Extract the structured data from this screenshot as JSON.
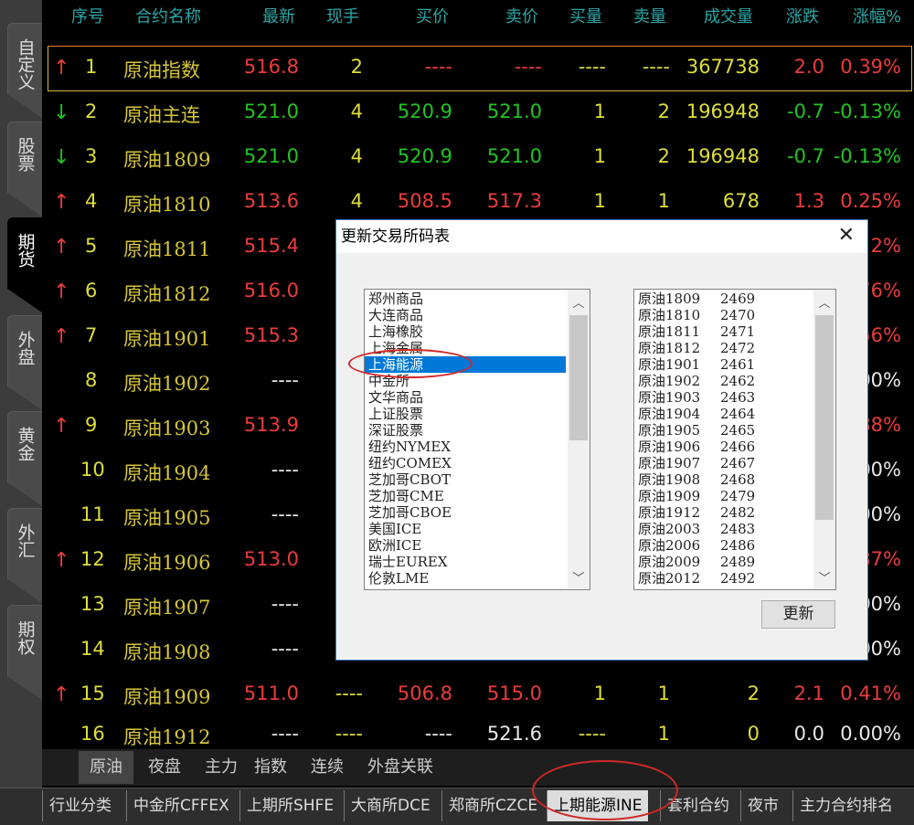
{
  "sidebar": {
    "tabs": [
      "自定义",
      "股票",
      "期货",
      "外盘",
      "黄金",
      "外汇",
      "期权"
    ],
    "active": "期货"
  },
  "table": {
    "headers": [
      "序号",
      "合约名称",
      "最新",
      "现手",
      "买价",
      "卖价",
      "买量",
      "卖量",
      "成交量",
      "涨跌",
      "涨幅%"
    ],
    "colors": {
      "r": "#ec3c3c",
      "g": "#22c422",
      "y": "#dede3a",
      "w": "#e8e8e8"
    },
    "rows": [
      {
        "dir": "up",
        "cells": [
          [
            "1",
            "y"
          ],
          [
            "原油指数",
            "n"
          ],
          [
            "516.8",
            "r"
          ],
          [
            "2",
            "y"
          ],
          [
            "----",
            "r"
          ],
          [
            "----",
            "r"
          ],
          [
            "----",
            "y"
          ],
          [
            "----",
            "y"
          ],
          [
            "367738",
            "y"
          ],
          [
            "2.0",
            "r"
          ],
          [
            "0.39%",
            "r"
          ]
        ]
      },
      {
        "dir": "down",
        "cells": [
          [
            "2",
            "y"
          ],
          [
            "原油主连",
            "n"
          ],
          [
            "521.0",
            "g"
          ],
          [
            "4",
            "y"
          ],
          [
            "520.9",
            "g"
          ],
          [
            "521.0",
            "g"
          ],
          [
            "1",
            "y"
          ],
          [
            "2",
            "y"
          ],
          [
            "196948",
            "y"
          ],
          [
            "-0.7",
            "g"
          ],
          [
            "-0.13%",
            "g"
          ]
        ]
      },
      {
        "dir": "down",
        "cells": [
          [
            "3",
            "y"
          ],
          [
            "原油1809",
            "n"
          ],
          [
            "521.0",
            "g"
          ],
          [
            "4",
            "y"
          ],
          [
            "520.9",
            "g"
          ],
          [
            "521.0",
            "g"
          ],
          [
            "1",
            "y"
          ],
          [
            "2",
            "y"
          ],
          [
            "196948",
            "y"
          ],
          [
            "-0.7",
            "g"
          ],
          [
            "-0.13%",
            "g"
          ]
        ]
      },
      {
        "dir": "up",
        "cells": [
          [
            "4",
            "y"
          ],
          [
            "原油1810",
            "n"
          ],
          [
            "513.6",
            "r"
          ],
          [
            "4",
            "y"
          ],
          [
            "508.5",
            "r"
          ],
          [
            "517.3",
            "r"
          ],
          [
            "1",
            "y"
          ],
          [
            "1",
            "y"
          ],
          [
            "678",
            "y"
          ],
          [
            "1.3",
            "r"
          ],
          [
            "0.25%",
            "r"
          ]
        ]
      },
      {
        "dir": "up",
        "cells": [
          [
            "5",
            "y"
          ],
          [
            "原油1811",
            "n"
          ],
          [
            "515.4",
            "r"
          ],
          [
            "",
            "y"
          ],
          [
            "",
            "y"
          ],
          [
            "",
            "y"
          ],
          [
            "",
            "y"
          ],
          [
            "",
            "y"
          ],
          [
            "",
            "y"
          ],
          [
            "",
            "y"
          ],
          [
            "2%",
            "r"
          ]
        ]
      },
      {
        "dir": "up",
        "cells": [
          [
            "6",
            "y"
          ],
          [
            "原油1812",
            "n"
          ],
          [
            "516.0",
            "r"
          ],
          [
            "",
            "y"
          ],
          [
            "",
            "y"
          ],
          [
            "",
            "y"
          ],
          [
            "",
            "y"
          ],
          [
            "",
            "y"
          ],
          [
            "",
            "y"
          ],
          [
            "",
            "y"
          ],
          [
            "76%",
            "r"
          ]
        ]
      },
      {
        "dir": "up",
        "cells": [
          [
            "7",
            "y"
          ],
          [
            "原油1901",
            "n"
          ],
          [
            "515.3",
            "r"
          ],
          [
            "",
            "y"
          ],
          [
            "",
            "y"
          ],
          [
            "",
            "y"
          ],
          [
            "",
            "y"
          ],
          [
            "",
            "y"
          ],
          [
            "",
            "y"
          ],
          [
            "",
            "y"
          ],
          [
            "56%",
            "r"
          ]
        ]
      },
      {
        "dir": "",
        "cells": [
          [
            "8",
            "y"
          ],
          [
            "原油1902",
            "n"
          ],
          [
            "----",
            "w"
          ],
          [
            "",
            "y"
          ],
          [
            "",
            "y"
          ],
          [
            "",
            "y"
          ],
          [
            "",
            "y"
          ],
          [
            "",
            "y"
          ],
          [
            "",
            "y"
          ],
          [
            "",
            "y"
          ],
          [
            "00%",
            "w"
          ]
        ]
      },
      {
        "dir": "up",
        "cells": [
          [
            "9",
            "y"
          ],
          [
            "原油1903",
            "n"
          ],
          [
            "513.9",
            "r"
          ],
          [
            "",
            "y"
          ],
          [
            "",
            "y"
          ],
          [
            "",
            "y"
          ],
          [
            "",
            "y"
          ],
          [
            "",
            "y"
          ],
          [
            "",
            "y"
          ],
          [
            "",
            "y"
          ],
          [
            "88%",
            "r"
          ]
        ]
      },
      {
        "dir": "",
        "cells": [
          [
            "10",
            "y"
          ],
          [
            "原油1904",
            "n"
          ],
          [
            "----",
            "w"
          ],
          [
            "",
            "y"
          ],
          [
            "",
            "y"
          ],
          [
            "",
            "y"
          ],
          [
            "",
            "y"
          ],
          [
            "",
            "y"
          ],
          [
            "",
            "y"
          ],
          [
            "",
            "y"
          ],
          [
            "00%",
            "w"
          ]
        ]
      },
      {
        "dir": "",
        "cells": [
          [
            "11",
            "y"
          ],
          [
            "原油1905",
            "n"
          ],
          [
            "----",
            "w"
          ],
          [
            "",
            "y"
          ],
          [
            "",
            "y"
          ],
          [
            "",
            "y"
          ],
          [
            "",
            "y"
          ],
          [
            "",
            "y"
          ],
          [
            "",
            "y"
          ],
          [
            "",
            "y"
          ],
          [
            "00%",
            "w"
          ]
        ]
      },
      {
        "dir": "up",
        "cells": [
          [
            "12",
            "y"
          ],
          [
            "原油1906",
            "n"
          ],
          [
            "513.0",
            "r"
          ],
          [
            "",
            "y"
          ],
          [
            "",
            "y"
          ],
          [
            "",
            "y"
          ],
          [
            "",
            "y"
          ],
          [
            "",
            "y"
          ],
          [
            "",
            "y"
          ],
          [
            "",
            "y"
          ],
          [
            "87%",
            "r"
          ]
        ]
      },
      {
        "dir": "",
        "cells": [
          [
            "13",
            "y"
          ],
          [
            "原油1907",
            "n"
          ],
          [
            "----",
            "w"
          ],
          [
            "",
            "y"
          ],
          [
            "",
            "y"
          ],
          [
            "",
            "y"
          ],
          [
            "",
            "y"
          ],
          [
            "",
            "y"
          ],
          [
            "",
            "y"
          ],
          [
            "",
            "y"
          ],
          [
            "00%",
            "w"
          ]
        ]
      },
      {
        "dir": "",
        "cells": [
          [
            "14",
            "y"
          ],
          [
            "原油1908",
            "n"
          ],
          [
            "----",
            "w"
          ],
          [
            "",
            "y"
          ],
          [
            "",
            "y"
          ],
          [
            "",
            "y"
          ],
          [
            "",
            "y"
          ],
          [
            "",
            "y"
          ],
          [
            "",
            "y"
          ],
          [
            "",
            "y"
          ],
          [
            "00%",
            "w"
          ]
        ]
      },
      {
        "dir": "up",
        "cells": [
          [
            "15",
            "y"
          ],
          [
            "原油1909",
            "n"
          ],
          [
            "511.0",
            "r"
          ],
          [
            "----",
            "y"
          ],
          [
            "506.8",
            "r"
          ],
          [
            "515.0",
            "r"
          ],
          [
            "1",
            "y"
          ],
          [
            "1",
            "y"
          ],
          [
            "2",
            "y"
          ],
          [
            "2.1",
            "r"
          ],
          [
            "0.41%",
            "r"
          ]
        ]
      },
      {
        "dir": "",
        "cells": [
          [
            "16",
            "y"
          ],
          [
            "原油1912",
            "n"
          ],
          [
            "----",
            "w"
          ],
          [
            "----",
            "y"
          ],
          [
            "----",
            "w"
          ],
          [
            "521.6",
            "w"
          ],
          [
            "----",
            "y"
          ],
          [
            "1",
            "y"
          ],
          [
            "0",
            "y"
          ],
          [
            "0.0",
            "w"
          ],
          [
            "0.00%",
            "w"
          ]
        ]
      }
    ]
  },
  "subtabs": {
    "items": [
      "原油",
      "夜盘",
      "主力",
      "指数",
      "连续",
      "外盘关联"
    ],
    "active": "原油"
  },
  "bottomtabs": {
    "items": [
      "行业分类",
      "中金所CFFEX",
      "上期所SHFE",
      "大商所DCE",
      "郑商所CZCE",
      "上期能源INE",
      "套利合约",
      "夜市",
      "主力合约排名"
    ],
    "active": "上期能源INE"
  },
  "dialog": {
    "title": "更新交易所码表",
    "close": "✕",
    "exchanges": [
      "郑州商品",
      "大连商品",
      "上海橡胶",
      "上海金属",
      "上海能源",
      "中金所",
      "文华商品",
      "上证股票",
      "深证股票",
      "纽约NYMEX",
      "纽约COMEX",
      "芝加哥CBOT",
      "芝加哥CME",
      "芝加哥CBOE",
      "美国ICE",
      "欧洲ICE",
      "瑞士EUREX",
      "伦敦LME"
    ],
    "selected_exchange": "上海能源",
    "contracts": [
      [
        "原油1809",
        "2469"
      ],
      [
        "原油1810",
        "2470"
      ],
      [
        "原油1811",
        "2471"
      ],
      [
        "原油1812",
        "2472"
      ],
      [
        "原油1901",
        "2461"
      ],
      [
        "原油1902",
        "2462"
      ],
      [
        "原油1903",
        "2463"
      ],
      [
        "原油1904",
        "2464"
      ],
      [
        "原油1905",
        "2465"
      ],
      [
        "原油1906",
        "2466"
      ],
      [
        "原油1907",
        "2467"
      ],
      [
        "原油1908",
        "2468"
      ],
      [
        "原油1909",
        "2479"
      ],
      [
        "原油1912",
        "2482"
      ],
      [
        "原油2003",
        "2483"
      ],
      [
        "原油2006",
        "2486"
      ],
      [
        "原油2009",
        "2489"
      ],
      [
        "原油2012",
        "2492"
      ]
    ],
    "update_label": "更新"
  }
}
